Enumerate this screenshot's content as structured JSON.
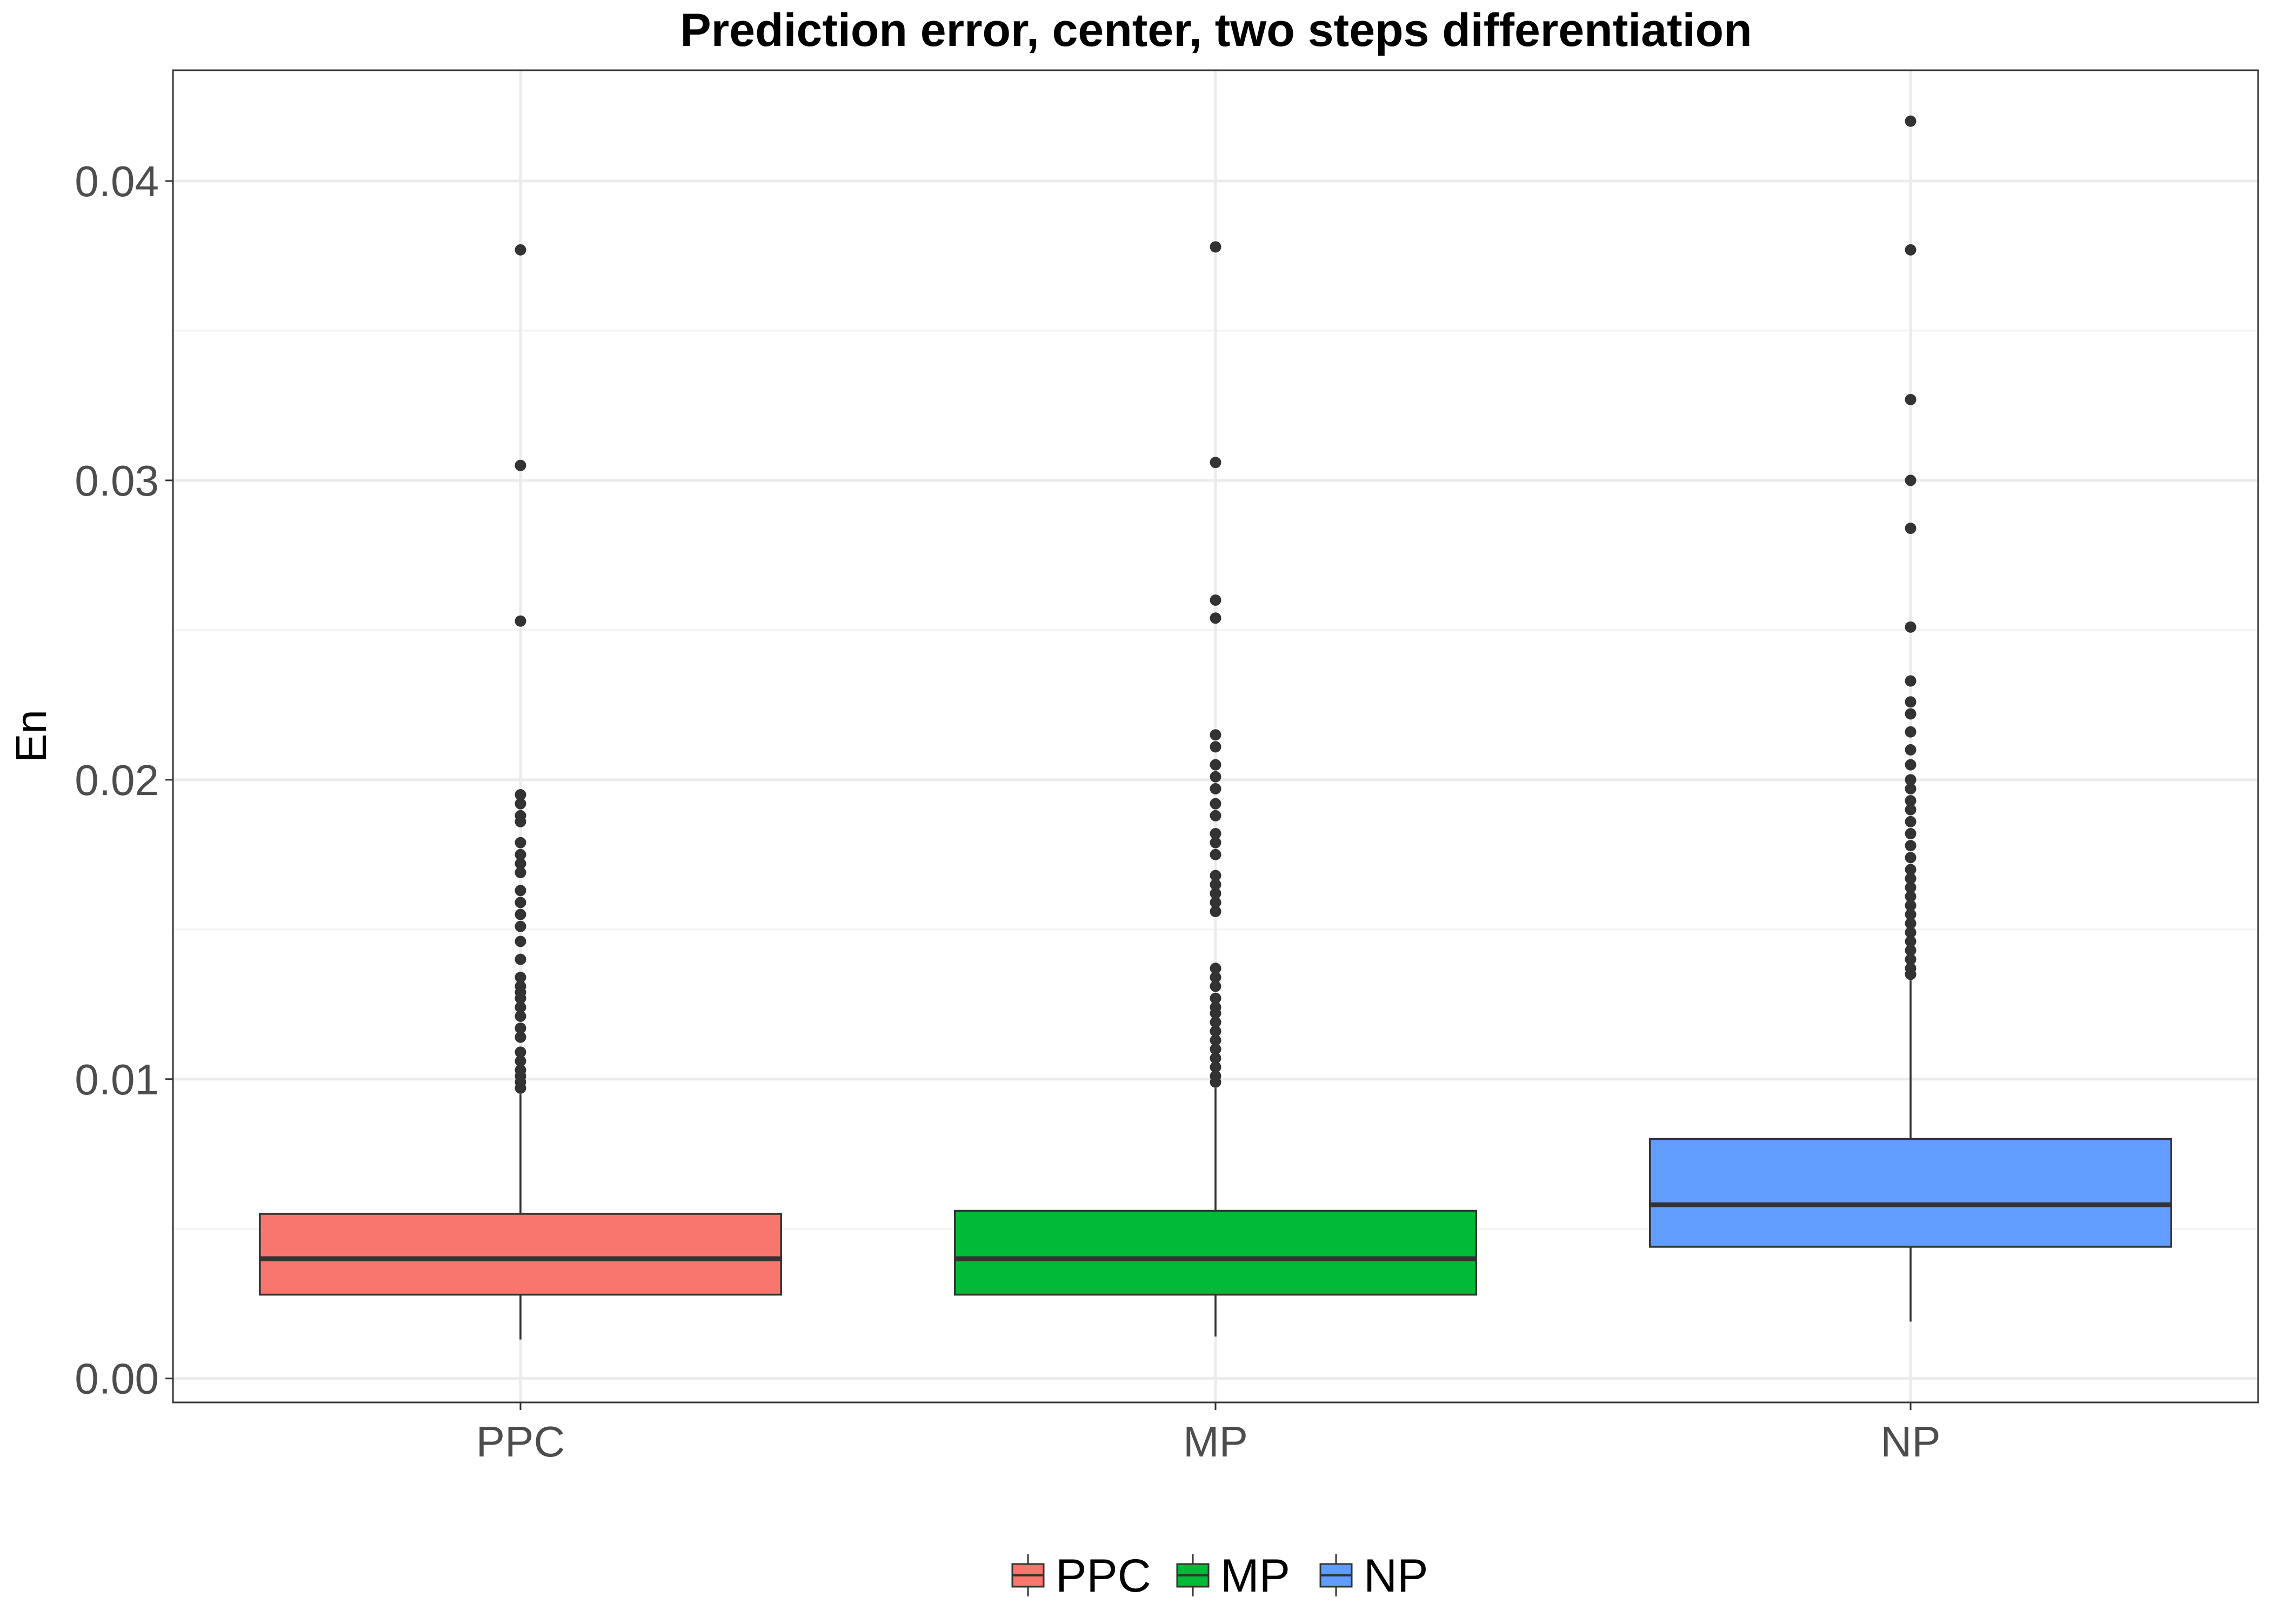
{
  "chart_data": {
    "type": "box",
    "title": "Prediction error, center, two steps differentiation",
    "xlabel": "",
    "ylabel": "En",
    "ylim": [
      -0.0008,
      0.0437
    ],
    "y_ticks": [
      0.0,
      0.01,
      0.02,
      0.03,
      0.04
    ],
    "y_tick_labels": [
      "0.00",
      "0.01",
      "0.02",
      "0.03",
      "0.04"
    ],
    "categories": [
      "PPC",
      "MP",
      "NP"
    ],
    "grid": true,
    "legend": {
      "position": "bottom",
      "entries": [
        "PPC",
        "MP",
        "NP"
      ]
    },
    "series": [
      {
        "name": "PPC",
        "color": "#F8766D",
        "whisker_low": 0.0013,
        "q1": 0.0028,
        "median": 0.004,
        "q3": 0.0055,
        "whisker_high": 0.0095,
        "outliers": [
          0.0377,
          0.0305,
          0.0253,
          0.0195,
          0.0192,
          0.0188,
          0.0186,
          0.0179,
          0.0175,
          0.0172,
          0.0169,
          0.0163,
          0.0159,
          0.0155,
          0.0151,
          0.0146,
          0.014,
          0.0134,
          0.0131,
          0.0129,
          0.0127,
          0.0124,
          0.0121,
          0.0117,
          0.0114,
          0.0109,
          0.0106,
          0.0103,
          0.0101,
          0.0099,
          0.0097
        ]
      },
      {
        "name": "MP",
        "color": "#00BA38",
        "whisker_low": 0.0014,
        "q1": 0.0028,
        "median": 0.004,
        "q3": 0.0056,
        "whisker_high": 0.0097,
        "outliers": [
          0.0378,
          0.0306,
          0.026,
          0.0254,
          0.0215,
          0.0211,
          0.0205,
          0.0201,
          0.0197,
          0.0192,
          0.0188,
          0.0182,
          0.0179,
          0.0175,
          0.0168,
          0.0165,
          0.0162,
          0.0159,
          0.0156,
          0.0137,
          0.0134,
          0.0131,
          0.0127,
          0.0124,
          0.0122,
          0.0119,
          0.0116,
          0.0113,
          0.011,
          0.0107,
          0.0104,
          0.0101,
          0.0099
        ]
      },
      {
        "name": "NP",
        "color": "#619CFF",
        "whisker_low": 0.0019,
        "q1": 0.0044,
        "median": 0.0058,
        "q3": 0.008,
        "whisker_high": 0.0133,
        "outliers": [
          0.042,
          0.0377,
          0.0327,
          0.03,
          0.0284,
          0.0251,
          0.0233,
          0.0226,
          0.0222,
          0.0216,
          0.021,
          0.0205,
          0.02,
          0.0197,
          0.0193,
          0.019,
          0.0186,
          0.0182,
          0.0178,
          0.0174,
          0.017,
          0.0167,
          0.0164,
          0.0161,
          0.0158,
          0.0155,
          0.0152,
          0.0149,
          0.0146,
          0.0143,
          0.014,
          0.0137,
          0.0135
        ]
      }
    ]
  }
}
